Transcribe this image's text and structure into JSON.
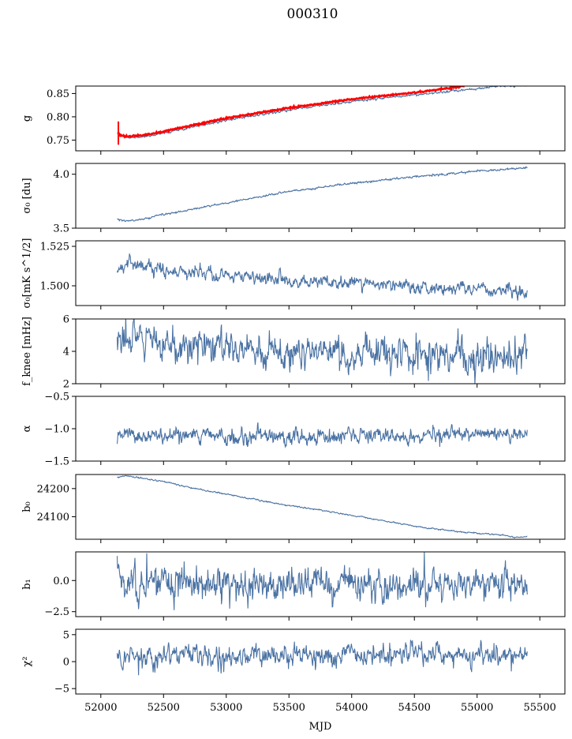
{
  "figure": {
    "title": "000310",
    "xlabel": "MJD"
  },
  "chart_data": {
    "type": "line",
    "x_range": [
      51800,
      55700
    ],
    "x_ticks": [
      52000,
      52500,
      53000,
      53500,
      54000,
      54500,
      55000,
      55500
    ],
    "x_tick_labels": [
      "52000",
      "52500",
      "53000",
      "53500",
      "54000",
      "54500",
      "55000",
      "55500"
    ],
    "data_x_range": [
      52130,
      55400
    ],
    "colors": {
      "series": "#4a72a3",
      "overlay": "#ff0000"
    },
    "panels": [
      {
        "id": "g",
        "ylabel": "g",
        "ylim": [
          0.727,
          0.866
        ],
        "yticks": [
          0.75,
          0.8,
          0.85
        ],
        "ytick_labels": [
          "0.75",
          "0.80",
          "0.85"
        ],
        "series_trend": [
          [
            52130,
            0.763
          ],
          [
            52180,
            0.757
          ],
          [
            52240,
            0.755
          ],
          [
            52400,
            0.76
          ],
          [
            52700,
            0.776
          ],
          [
            53000,
            0.793
          ],
          [
            53500,
            0.815
          ],
          [
            54000,
            0.833
          ],
          [
            54500,
            0.847
          ],
          [
            55000,
            0.86
          ],
          [
            55150,
            0.866
          ]
        ],
        "overlay_trend": [
          [
            52140,
            0.762
          ],
          [
            52220,
            0.757
          ],
          [
            52400,
            0.763
          ],
          [
            52700,
            0.78
          ],
          [
            53000,
            0.797
          ],
          [
            53500,
            0.819
          ],
          [
            54000,
            0.838
          ],
          [
            54500,
            0.852
          ],
          [
            54900,
            0.866
          ]
        ],
        "overlay_spike": {
          "x": 52140,
          "low": 0.74,
          "high": 0.79
        },
        "noise": 0.001
      },
      {
        "id": "sigma0",
        "ylabel": "σ₀ [du]",
        "ylim": [
          3.5,
          4.1
        ],
        "yticks": [
          3.5,
          4.0
        ],
        "ytick_labels": [
          "3.5",
          "4.0"
        ],
        "series_trend": [
          [
            52130,
            3.585
          ],
          [
            52200,
            3.565
          ],
          [
            52300,
            3.575
          ],
          [
            52500,
            3.625
          ],
          [
            53000,
            3.735
          ],
          [
            53500,
            3.84
          ],
          [
            54000,
            3.915
          ],
          [
            54500,
            3.975
          ],
          [
            55000,
            4.03
          ],
          [
            55400,
            4.06
          ]
        ],
        "noise": 0.004
      },
      {
        "id": "sigma0_nep",
        "ylabel": "σ₀[mK s^1/2]",
        "ylim": [
          1.4875,
          1.5285
        ],
        "yticks": [
          1.5,
          1.525
        ],
        "ytick_labels": [
          "1.500",
          "1.525"
        ],
        "series_trend": [
          [
            52130,
            1.51
          ],
          [
            52230,
            1.515
          ],
          [
            52500,
            1.51
          ],
          [
            53000,
            1.507
          ],
          [
            53500,
            1.504
          ],
          [
            54000,
            1.502
          ],
          [
            54500,
            1.499
          ],
          [
            55000,
            1.498
          ],
          [
            55400,
            1.496
          ]
        ],
        "noise": 0.0018
      },
      {
        "id": "fknee",
        "ylabel": "f_knee [mHz]",
        "ylim": [
          2,
          6
        ],
        "yticks": [
          2,
          4,
          6
        ],
        "ytick_labels": [
          "2",
          "4",
          "6"
        ],
        "series_trend": [
          [
            52130,
            4.7
          ],
          [
            52500,
            4.4
          ],
          [
            53000,
            4.2
          ],
          [
            53500,
            4.0
          ],
          [
            54000,
            3.9
          ],
          [
            54500,
            3.8
          ],
          [
            55000,
            3.7
          ],
          [
            55400,
            3.6
          ]
        ],
        "noise": 0.45
      },
      {
        "id": "alpha",
        "ylabel": "α",
        "ylim": [
          -1.5,
          -0.5
        ],
        "yticks": [
          -1.5,
          -1.0,
          -0.5
        ],
        "ytick_labels": [
          "−1.5",
          "−1.0",
          "−0.5"
        ],
        "series_trend": [
          [
            52130,
            -1.12
          ],
          [
            55400,
            -1.1
          ]
        ],
        "noise": 0.05
      },
      {
        "id": "b0",
        "ylabel": "b₀",
        "ylim": [
          24020,
          24250
        ],
        "yticks": [
          24100,
          24200
        ],
        "ytick_labels": [
          "24100",
          "24200"
        ],
        "series_trend": [
          [
            52130,
            24240
          ],
          [
            52200,
            24245
          ],
          [
            52500,
            24225
          ],
          [
            52800,
            24195
          ],
          [
            53000,
            24180
          ],
          [
            53300,
            24155
          ],
          [
            53500,
            24140
          ],
          [
            53800,
            24120
          ],
          [
            54000,
            24105
          ],
          [
            54300,
            24082
          ],
          [
            54600,
            24060
          ],
          [
            54900,
            24045
          ],
          [
            55200,
            24035
          ],
          [
            55300,
            24027
          ],
          [
            55400,
            24030
          ]
        ],
        "noise": 1.0
      },
      {
        "id": "b1",
        "ylabel": "b₁",
        "ylim": [
          -2.9,
          2.3
        ],
        "yticks": [
          -2.5,
          0.0
        ],
        "ytick_labels": [
          "−2.5",
          "0.0"
        ],
        "series_trend": [
          [
            52130,
            1.6
          ],
          [
            52150,
            0.4
          ],
          [
            52180,
            -0.2
          ],
          [
            52300,
            -0.3
          ],
          [
            55400,
            -0.3
          ]
        ],
        "noise": 0.55
      },
      {
        "id": "chi2",
        "ylabel": "χ²",
        "ylim": [
          -6,
          6
        ],
        "yticks": [
          -5,
          0,
          5
        ],
        "ytick_labels": [
          "−5",
          "0",
          "5"
        ],
        "series_trend": [
          [
            52130,
            0.8
          ],
          [
            53000,
            1.0
          ],
          [
            54000,
            1.2
          ],
          [
            55000,
            1.3
          ],
          [
            55400,
            1.5
          ]
        ],
        "noise": 0.8
      }
    ]
  }
}
